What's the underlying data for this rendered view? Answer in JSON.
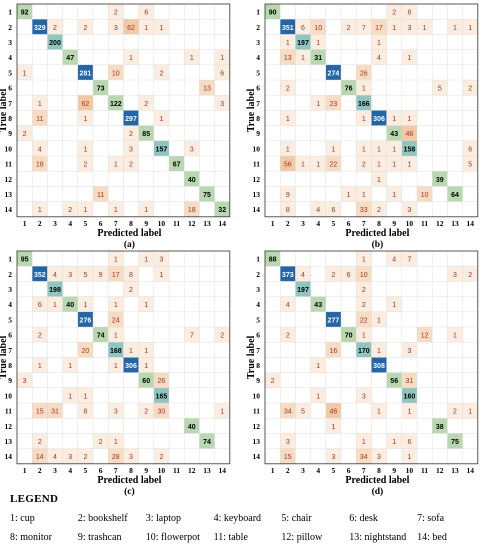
{
  "chart_data": [
    {
      "type": "heatmap",
      "panel_label": "(a)",
      "xlabel": "Predicted label",
      "ylabel": "True label",
      "categories": [
        "1",
        "2",
        "3",
        "4",
        "5",
        "6",
        "7",
        "8",
        "9",
        "10",
        "11",
        "12",
        "13",
        "14"
      ],
      "rows": [
        [
          92,
          0,
          0,
          0,
          0,
          0,
          2,
          0,
          6,
          0,
          0,
          0,
          0,
          0
        ],
        [
          0,
          329,
          2,
          0,
          2,
          0,
          3,
          62,
          1,
          1,
          0,
          0,
          0,
          0
        ],
        [
          0,
          0,
          200,
          0,
          0,
          0,
          0,
          0,
          0,
          0,
          0,
          0,
          0,
          0
        ],
        [
          0,
          0,
          0,
          47,
          0,
          0,
          0,
          1,
          0,
          0,
          0,
          1,
          0,
          1
        ],
        [
          1,
          0,
          0,
          0,
          281,
          0,
          10,
          0,
          0,
          2,
          0,
          0,
          0,
          6
        ],
        [
          0,
          0,
          0,
          0,
          0,
          73,
          0,
          0,
          0,
          0,
          0,
          0,
          13,
          0
        ],
        [
          0,
          1,
          0,
          0,
          62,
          0,
          122,
          0,
          2,
          0,
          0,
          0,
          0,
          3
        ],
        [
          0,
          11,
          0,
          0,
          1,
          0,
          0,
          297,
          0,
          1,
          0,
          0,
          0,
          0
        ],
        [
          2,
          0,
          0,
          0,
          0,
          0,
          0,
          2,
          85,
          0,
          0,
          0,
          0,
          0
        ],
        [
          0,
          4,
          0,
          0,
          1,
          0,
          0,
          3,
          0,
          157,
          0,
          3,
          0,
          0
        ],
        [
          0,
          18,
          0,
          0,
          2,
          0,
          1,
          2,
          0,
          0,
          67,
          0,
          0,
          0
        ],
        [
          0,
          0,
          0,
          0,
          0,
          0,
          0,
          0,
          0,
          0,
          0,
          40,
          0,
          0
        ],
        [
          0,
          0,
          0,
          0,
          0,
          11,
          0,
          0,
          0,
          0,
          0,
          0,
          75,
          0
        ],
        [
          0,
          1,
          0,
          2,
          1,
          0,
          1,
          0,
          1,
          0,
          0,
          18,
          0,
          32
        ]
      ]
    },
    {
      "type": "heatmap",
      "panel_label": "(b)",
      "xlabel": "Predicted label",
      "ylabel": "True label",
      "categories": [
        "1",
        "2",
        "3",
        "4",
        "5",
        "6",
        "7",
        "8",
        "9",
        "10",
        "11",
        "12",
        "13",
        "14"
      ],
      "rows": [
        [
          90,
          0,
          0,
          0,
          0,
          0,
          0,
          0,
          2,
          8,
          0,
          0,
          0,
          0
        ],
        [
          0,
          351,
          6,
          10,
          0,
          2,
          7,
          17,
          1,
          3,
          1,
          0,
          1,
          1
        ],
        [
          0,
          1,
          197,
          1,
          0,
          0,
          0,
          1,
          0,
          0,
          0,
          0,
          0,
          0
        ],
        [
          0,
          13,
          1,
          31,
          0,
          0,
          0,
          4,
          0,
          1,
          0,
          0,
          0,
          0
        ],
        [
          0,
          0,
          0,
          0,
          274,
          0,
          26,
          0,
          0,
          0,
          0,
          0,
          0,
          0
        ],
        [
          0,
          2,
          0,
          0,
          0,
          76,
          1,
          0,
          0,
          0,
          0,
          5,
          0,
          2
        ],
        [
          0,
          0,
          0,
          1,
          23,
          0,
          166,
          0,
          0,
          0,
          0,
          0,
          0,
          0
        ],
        [
          0,
          1,
          0,
          0,
          0,
          0,
          1,
          306,
          1,
          1,
          0,
          0,
          0,
          0
        ],
        [
          0,
          0,
          0,
          0,
          0,
          0,
          0,
          0,
          43,
          46,
          0,
          0,
          0,
          0
        ],
        [
          0,
          1,
          0,
          0,
          1,
          0,
          1,
          1,
          1,
          158,
          0,
          0,
          0,
          6
        ],
        [
          0,
          56,
          1,
          1,
          22,
          0,
          2,
          1,
          1,
          1,
          0,
          0,
          0,
          5
        ],
        [
          0,
          0,
          0,
          0,
          0,
          0,
          0,
          1,
          0,
          0,
          0,
          39,
          0,
          0
        ],
        [
          0,
          9,
          0,
          0,
          0,
          1,
          1,
          0,
          1,
          0,
          10,
          0,
          64,
          0
        ],
        [
          0,
          8,
          0,
          4,
          6,
          0,
          33,
          2,
          0,
          3,
          0,
          0,
          0,
          0
        ]
      ]
    },
    {
      "type": "heatmap",
      "panel_label": "(c)",
      "xlabel": "Predicted label",
      "ylabel": "True label",
      "categories": [
        "1",
        "2",
        "3",
        "4",
        "5",
        "6",
        "7",
        "8",
        "9",
        "10",
        "11",
        "12",
        "13",
        "14"
      ],
      "rows": [
        [
          95,
          0,
          0,
          0,
          0,
          0,
          1,
          0,
          1,
          3,
          0,
          0,
          0,
          0
        ],
        [
          0,
          352,
          4,
          3,
          5,
          9,
          17,
          8,
          0,
          1,
          0,
          0,
          0,
          0
        ],
        [
          0,
          0,
          198,
          0,
          0,
          0,
          0,
          2,
          0,
          0,
          0,
          0,
          0,
          0
        ],
        [
          0,
          6,
          1,
          40,
          1,
          0,
          1,
          0,
          1,
          0,
          0,
          0,
          0,
          0
        ],
        [
          0,
          0,
          0,
          0,
          276,
          0,
          24,
          0,
          0,
          0,
          0,
          0,
          0,
          0
        ],
        [
          0,
          2,
          0,
          0,
          0,
          74,
          1,
          0,
          0,
          0,
          0,
          7,
          0,
          2
        ],
        [
          0,
          0,
          0,
          0,
          20,
          0,
          168,
          1,
          1,
          0,
          0,
          0,
          0,
          0
        ],
        [
          0,
          1,
          0,
          1,
          0,
          0,
          1,
          306,
          1,
          0,
          0,
          0,
          0,
          0
        ],
        [
          3,
          0,
          0,
          0,
          0,
          0,
          0,
          0,
          60,
          26,
          0,
          0,
          0,
          0
        ],
        [
          0,
          0,
          0,
          1,
          1,
          0,
          0,
          0,
          0,
          165,
          0,
          0,
          0,
          0
        ],
        [
          0,
          15,
          31,
          0,
          8,
          0,
          3,
          0,
          2,
          30,
          0,
          0,
          0,
          1
        ],
        [
          0,
          0,
          0,
          0,
          0,
          0,
          0,
          0,
          0,
          0,
          0,
          40,
          0,
          0
        ],
        [
          0,
          2,
          0,
          0,
          0,
          2,
          1,
          0,
          0,
          0,
          0,
          0,
          74,
          0
        ],
        [
          0,
          14,
          4,
          3,
          2,
          0,
          28,
          3,
          0,
          2,
          0,
          0,
          0,
          0
        ]
      ]
    },
    {
      "type": "heatmap",
      "panel_label": "(d)",
      "xlabel": "Predicted label",
      "ylabel": "True label",
      "categories": [
        "1",
        "2",
        "3",
        "4",
        "5",
        "6",
        "7",
        "8",
        "9",
        "10",
        "11",
        "12",
        "13",
        "14"
      ],
      "rows": [
        [
          88,
          0,
          0,
          0,
          0,
          0,
          1,
          0,
          4,
          7,
          0,
          0,
          0,
          0
        ],
        [
          0,
          373,
          4,
          0,
          2,
          6,
          10,
          0,
          0,
          0,
          0,
          0,
          3,
          2
        ],
        [
          0,
          0,
          197,
          0,
          0,
          0,
          2,
          0,
          0,
          0,
          0,
          0,
          0,
          0
        ],
        [
          0,
          4,
          0,
          43,
          0,
          0,
          2,
          0,
          1,
          0,
          0,
          0,
          0,
          0
        ],
        [
          0,
          0,
          0,
          0,
          277,
          0,
          22,
          1,
          0,
          0,
          0,
          0,
          0,
          0
        ],
        [
          0,
          2,
          0,
          0,
          0,
          70,
          1,
          0,
          0,
          0,
          12,
          0,
          1,
          0
        ],
        [
          0,
          0,
          0,
          0,
          16,
          0,
          170,
          1,
          0,
          3,
          0,
          0,
          0,
          0
        ],
        [
          0,
          0,
          0,
          1,
          0,
          0,
          0,
          308,
          0,
          0,
          0,
          0,
          0,
          0
        ],
        [
          2,
          0,
          0,
          0,
          0,
          0,
          0,
          0,
          56,
          31,
          0,
          0,
          0,
          0
        ],
        [
          0,
          0,
          0,
          1,
          0,
          0,
          3,
          0,
          0,
          160,
          0,
          0,
          0,
          0
        ],
        [
          0,
          34,
          5,
          0,
          46,
          0,
          0,
          1,
          0,
          1,
          0,
          0,
          2,
          1
        ],
        [
          0,
          0,
          0,
          0,
          1,
          0,
          0,
          0,
          0,
          0,
          0,
          38,
          0,
          0
        ],
        [
          0,
          3,
          0,
          0,
          0,
          0,
          1,
          0,
          1,
          6,
          0,
          0,
          75,
          0
        ],
        [
          0,
          15,
          0,
          0,
          3,
          0,
          34,
          3,
          0,
          1,
          0,
          0,
          0,
          0
        ]
      ]
    }
  ],
  "legend": {
    "title": "LEGEND",
    "items": [
      "1: cup",
      "2: bookshelf",
      "3: laptop",
      "4: keyboard",
      "5: chair",
      "6: desk",
      "7: sofa",
      "8: monitor",
      "9: trashcan",
      "10: flowerpot",
      "11: table",
      "12: pillow",
      "13: nightstand",
      "14: bed"
    ]
  },
  "colors": {
    "diag_high": "#2166ac",
    "diag_mid": "#8ec6c0",
    "diag_low": "#b8d8b0",
    "off_high": "#f3c9a4",
    "off_mid": "#f7dcc2",
    "off_low": "#fbede0",
    "text_offdiag": "#a6332a",
    "text_diag_dark": "#ffffff",
    "text_diag_light": "#000000"
  }
}
